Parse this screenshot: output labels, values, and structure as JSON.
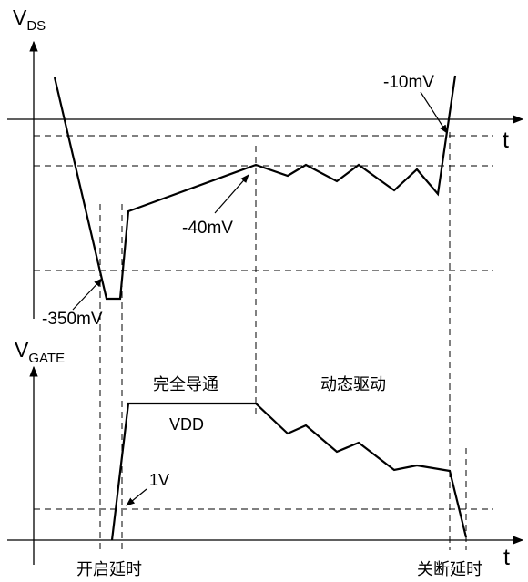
{
  "top_plot": {
    "y_label_main": "V",
    "y_label_sub": "DS",
    "x_label": "t",
    "annotations": {
      "neg10": "-10mV",
      "neg40": "-40mV",
      "neg350": "-350mV"
    }
  },
  "bottom_plot": {
    "y_label_main": "V",
    "y_label_sub": "GATE",
    "x_label": "t",
    "annotations": {
      "full_on": "完全导通",
      "dynamic_drive": "动态驱动",
      "vdd": "VDD",
      "one_volt": "1V",
      "turn_on_delay": "开启延时",
      "turn_off_delay": "关断延时"
    }
  }
}
